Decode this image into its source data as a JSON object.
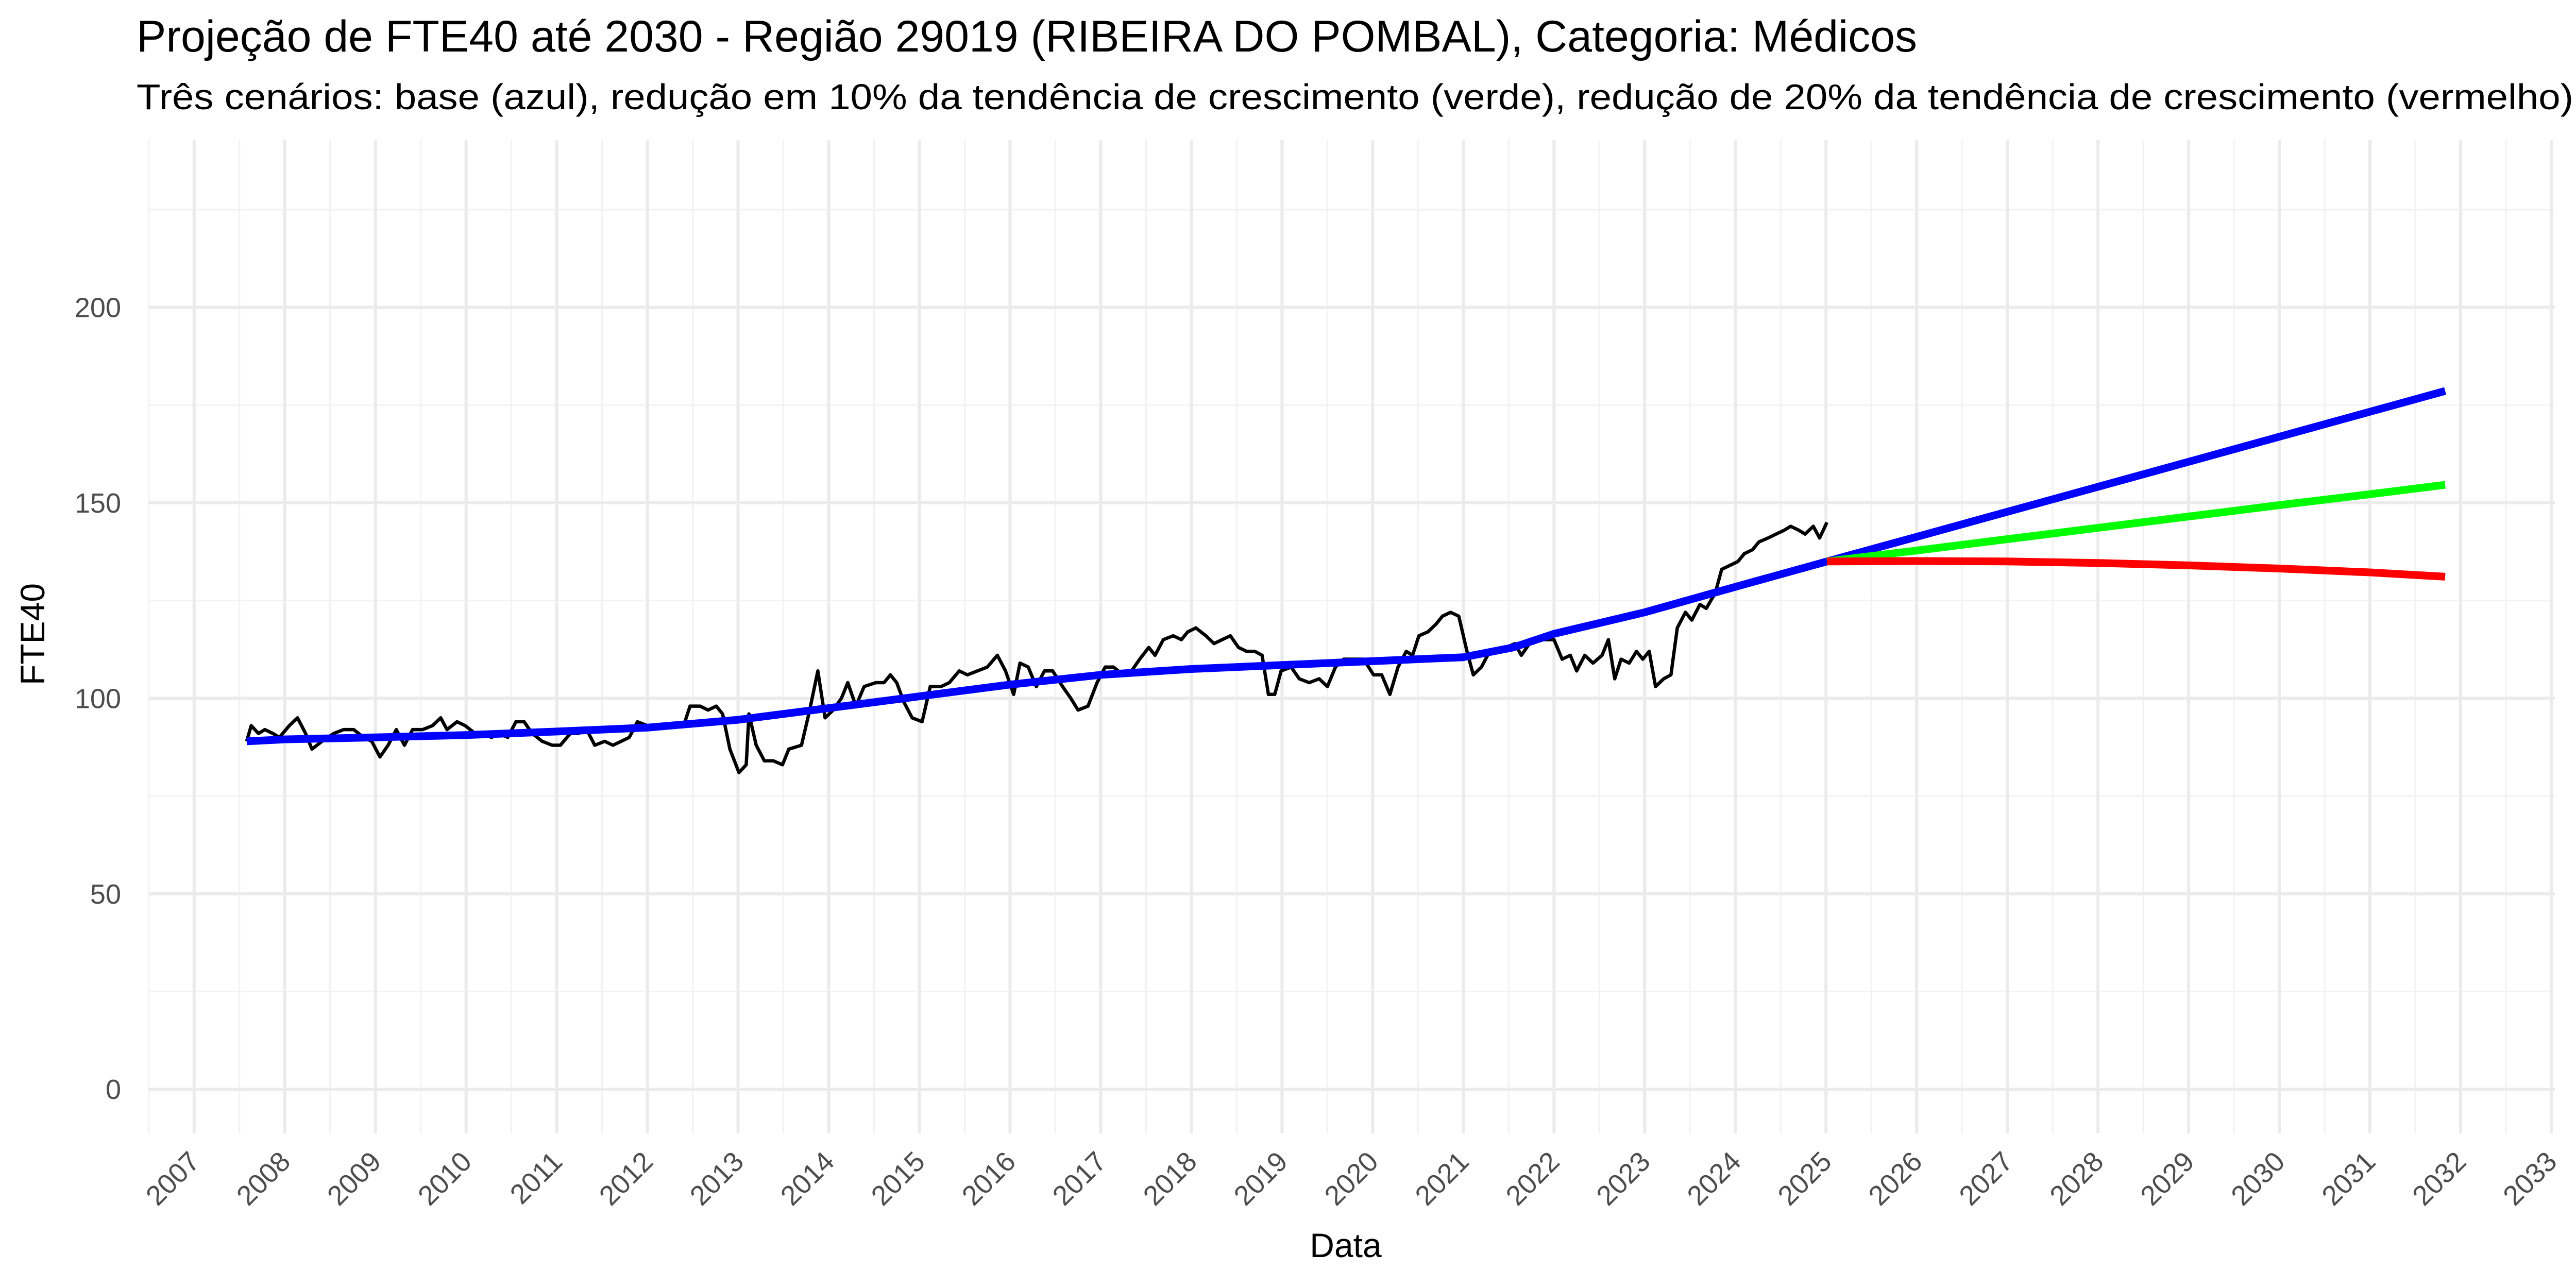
{
  "chart_data": {
    "type": "line",
    "title": "Projeção de FTE40 até 2030 - Região 29019 (RIBEIRA DO POMBAL), Categoria: Médicos",
    "subtitle": "Três cenários: base (azul), redução em 10% da tendência de crescimento (verde), redução de 20% da tendência de crescimento (vermelho)",
    "x_label": "Data",
    "y_label": "FTE40",
    "xlim": [
      2006.49,
      2033.04
    ],
    "ylim": [
      -11.3,
      242.9
    ],
    "xticks": [
      2007,
      2008,
      2009,
      2010,
      2011,
      2012,
      2013,
      2014,
      2015,
      2016,
      2017,
      2018,
      2019,
      2020,
      2021,
      2022,
      2023,
      2024,
      2025,
      2026,
      2027,
      2028,
      2029,
      2030,
      2031,
      2032,
      2033
    ],
    "xminorticks": [
      2006.5,
      2007.5,
      2008.5,
      2009.5,
      2010.5,
      2011.5,
      2012.5,
      2013.5,
      2014.5,
      2015.5,
      2016.5,
      2017.5,
      2018.5,
      2019.5,
      2020.5,
      2021.5,
      2022.5,
      2023.5,
      2024.5,
      2025.5,
      2026.5,
      2027.5,
      2028.5,
      2029.5,
      2030.5,
      2031.5,
      2032.5
    ],
    "yticks": [
      0,
      50,
      100,
      150,
      200
    ],
    "yminorticks": [
      25,
      75,
      125,
      175,
      225
    ],
    "grid": true,
    "series": [
      {
        "color": "#000000",
        "width": "thin",
        "x": [
          2007.58,
          2007.63,
          2007.71,
          2007.78,
          2007.87,
          2007.94,
          2008.05,
          2008.14,
          2008.23,
          2008.3,
          2008.41,
          2008.54,
          2008.65,
          2008.76,
          2008.87,
          2008.96,
          2009.05,
          2009.14,
          2009.23,
          2009.32,
          2009.41,
          2009.52,
          2009.63,
          2009.72,
          2009.79,
          2009.9,
          2009.99,
          2010.1,
          2010.19,
          2010.28,
          2010.37,
          2010.46,
          2010.55,
          2010.64,
          2010.73,
          2010.84,
          2010.95,
          2011.04,
          2011.15,
          2011.24,
          2011.33,
          2011.42,
          2011.53,
          2011.62,
          2011.71,
          2011.8,
          2011.89,
          2012.0,
          2012.09,
          2012.2,
          2012.29,
          2012.4,
          2012.47,
          2012.58,
          2012.67,
          2012.76,
          2012.83,
          2012.91,
          2013.01,
          2013.09,
          2013.12,
          2013.2,
          2013.29,
          2013.39,
          2013.49,
          2013.56,
          2013.7,
          2013.79,
          2013.88,
          2013.96,
          2014.05,
          2014.14,
          2014.21,
          2014.3,
          2014.39,
          2014.52,
          2014.61,
          2014.68,
          2014.75,
          2014.83,
          2014.92,
          2015.03,
          2015.12,
          2015.24,
          2015.33,
          2015.44,
          2015.53,
          2015.64,
          2015.75,
          2015.86,
          2015.95,
          2016.04,
          2016.11,
          2016.2,
          2016.29,
          2016.38,
          2016.47,
          2016.58,
          2016.67,
          2016.75,
          2016.86,
          2016.96,
          2017.05,
          2017.14,
          2017.25,
          2017.34,
          2017.43,
          2017.53,
          2017.6,
          2017.69,
          2017.8,
          2017.89,
          2017.96,
          2018.05,
          2018.16,
          2018.25,
          2018.34,
          2018.43,
          2018.52,
          2018.61,
          2018.7,
          2018.78,
          2018.85,
          2018.92,
          2018.99,
          2019.1,
          2019.19,
          2019.3,
          2019.41,
          2019.5,
          2019.59,
          2019.68,
          2019.79,
          2019.9,
          2020.01,
          2020.1,
          2020.19,
          2020.28,
          2020.37,
          2020.44,
          2020.51,
          2020.61,
          2020.7,
          2020.77,
          2020.86,
          2020.95,
          2021.04,
          2021.11,
          2021.2,
          2021.29,
          2021.38,
          2021.47,
          2021.57,
          2021.64,
          2021.73,
          2021.82,
          2021.91,
          2022.0,
          2022.09,
          2022.18,
          2022.25,
          2022.34,
          2022.43,
          2022.53,
          2022.6,
          2022.67,
          2022.74,
          2022.83,
          2022.91,
          2022.98,
          2023.05,
          2023.12,
          2023.21,
          2023.29,
          2023.36,
          2023.45,
          2023.52,
          2023.61,
          2023.68,
          2023.78,
          2023.85,
          2023.94,
          2024.03,
          2024.1,
          2024.19,
          2024.26,
          2024.36,
          2024.45,
          2024.54,
          2024.61,
          2024.7,
          2024.77,
          2024.86,
          2024.93,
          2025.01
        ],
        "values": [
          89,
          93,
          91,
          92,
          91,
          90,
          93,
          95,
          91,
          87,
          89,
          91,
          92,
          92,
          90,
          89,
          85,
          88,
          92,
          88,
          92,
          92,
          93,
          95,
          92,
          94,
          93,
          91,
          91,
          90,
          91,
          90,
          94,
          94,
          91,
          89,
          88,
          88,
          91,
          91,
          92,
          88,
          89,
          88,
          89,
          90,
          94,
          93,
          93,
          93,
          93,
          93,
          98,
          98,
          97,
          98,
          96,
          87,
          81,
          83,
          96,
          88,
          84,
          84,
          83,
          87,
          88,
          97,
          107,
          95,
          97,
          100,
          104,
          98,
          103,
          104,
          104,
          106,
          104,
          99,
          95,
          94,
          103,
          103,
          104,
          107,
          106,
          107,
          108,
          111,
          107,
          101,
          109,
          108,
          103,
          107,
          107,
          103,
          100,
          97,
          98,
          104,
          108,
          108,
          106,
          107,
          110,
          113,
          111,
          115,
          116,
          115,
          117,
          118,
          116,
          114,
          115,
          116,
          113,
          112,
          112,
          111,
          101,
          101,
          107,
          108,
          105,
          104,
          105,
          103,
          108,
          110,
          110,
          110,
          106,
          106,
          101,
          108,
          112,
          111,
          116,
          117,
          119,
          121,
          122,
          121,
          112,
          106,
          108,
          112,
          112,
          113,
          114,
          111,
          114,
          115,
          115,
          115,
          110,
          111,
          107,
          111,
          109,
          111,
          115,
          105,
          110,
          109,
          112,
          110,
          112,
          103,
          105,
          106,
          118,
          122,
          120,
          124,
          123,
          127,
          133,
          134,
          135,
          137,
          138,
          140,
          141,
          142,
          143,
          144,
          143,
          142,
          144,
          141,
          145
        ]
      },
      {
        "color": "#0000ff",
        "width": "thick",
        "x": [
          2007.58,
          2008,
          2009,
          2010,
          2011,
          2012,
          2013,
          2014,
          2015,
          2016,
          2017,
          2018,
          2019,
          2020,
          2021,
          2021.55,
          2022,
          2023,
          2024,
          2025.01,
          2026,
          2027,
          2028,
          2029,
          2030,
          2031,
          2031.83
        ],
        "values": [
          89,
          89.5,
          90,
          90.6,
          91.5,
          92.5,
          94.5,
          97.5,
          100.5,
          103.5,
          106,
          107.5,
          108.5,
          109.5,
          110.5,
          113,
          116.5,
          122,
          128.5,
          135,
          141.3,
          147.7,
          154.1,
          160.5,
          166.9,
          173.3,
          178.6
        ]
      },
      {
        "color": "#00ff00",
        "width": "thick",
        "x": [
          2025.01,
          2026,
          2027,
          2028,
          2029,
          2030,
          2031,
          2031.83
        ],
        "values": [
          135,
          137.8,
          140.7,
          143.6,
          146.5,
          149.4,
          152.2,
          154.6
        ]
      },
      {
        "color": "#ff0000",
        "width": "thick",
        "x": [
          2025.01,
          2026,
          2027,
          2028,
          2029,
          2030,
          2031,
          2031.83
        ],
        "values": [
          135,
          135.1,
          135.0,
          134.6,
          134.0,
          133.2,
          132.2,
          131.1
        ]
      }
    ]
  }
}
